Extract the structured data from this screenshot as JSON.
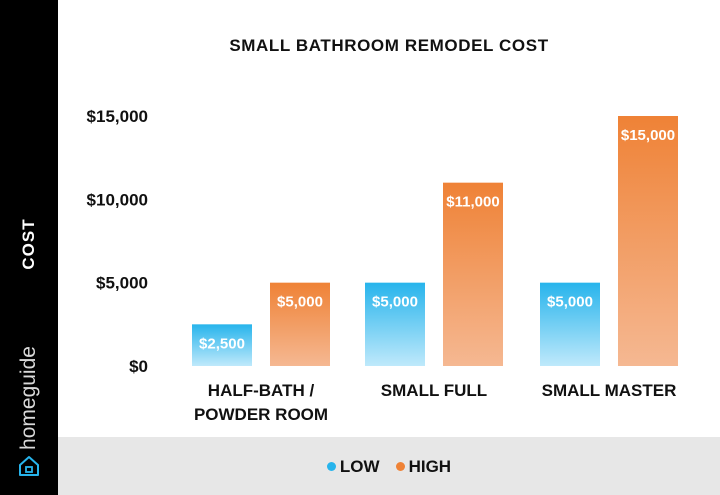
{
  "chart_data": {
    "type": "bar",
    "title": "SMALL BATHROOM REMODEL COST",
    "ylabel": "COST",
    "xlabel": "",
    "categories": [
      [
        "HALF-BATH /",
        "POWDER ROOM"
      ],
      [
        "SMALL FULL"
      ],
      [
        "SMALL MASTER"
      ]
    ],
    "series": [
      {
        "name": "LOW",
        "color": "#27b4ec",
        "color_light": "#bfe9fb",
        "values": [
          2500,
          5000,
          5000
        ],
        "labels": [
          "$2,500",
          "$5,000",
          "$5,000"
        ]
      },
      {
        "name": "HIGH",
        "color": "#ef8236",
        "color_light": "#f5b892",
        "values": [
          5000,
          11000,
          15000
        ],
        "labels": [
          "$5,000",
          "$11,000",
          "$15,000"
        ]
      }
    ],
    "yticks": [
      0,
      5000,
      10000,
      15000
    ],
    "ytick_labels": [
      "$0",
      "$5,000",
      "$10,000",
      "$15,000"
    ],
    "ylim": [
      0,
      15000
    ],
    "grid": false,
    "legend_position": "bottom"
  },
  "brand": {
    "name": "homeguide",
    "icon": "house-icon"
  }
}
